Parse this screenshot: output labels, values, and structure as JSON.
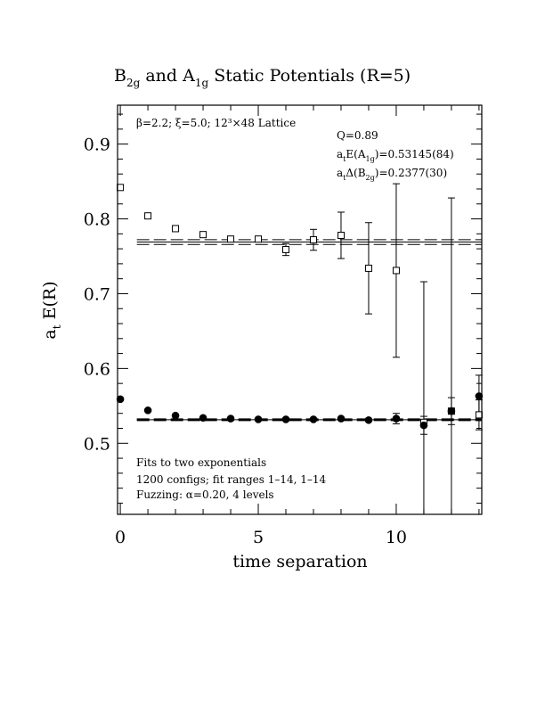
{
  "chart_data": {
    "type": "scatter",
    "title_parts": {
      "p1": "B",
      "p1_sub": "2g",
      "p2": " and A",
      "p2_sub": "1g",
      "p3": " Static Potentials (R=5)"
    },
    "xlabel": "time separation",
    "ylabel": {
      "main": "a",
      "sub": "t",
      "rest": " E(R)"
    },
    "xlim": [
      -0.1,
      13.1
    ],
    "ylim": [
      0.405,
      0.952
    ],
    "xticks": [
      0,
      5,
      10
    ],
    "xtick_labels": [
      "0",
      "5",
      "10"
    ],
    "yticks": [
      0.5,
      0.6,
      0.7,
      0.8,
      0.9
    ],
    "ytick_labels": [
      "0.5",
      "0.6",
      "0.7",
      "0.8",
      "0.9"
    ],
    "annotations": {
      "params": "β=2.2; ξ=5.0; 12³×48 Lattice",
      "q": "Q=0.89",
      "a1g": {
        "a": "a",
        "t": "t",
        "e": "E(A",
        "sub": "1g",
        "val": ")=0.53145(84)"
      },
      "b2g": {
        "a": "a",
        "t": "t",
        "d": "Δ(B",
        "sub": "2g",
        "val": ")=0.2377(30)"
      },
      "fits_line1": "Fits to two exponentials",
      "fits_line2": "1200 configs; fit ranges 1–14, 1–14",
      "fits_line3": "Fuzzing: α=0.20, 4 levels"
    },
    "series": [
      {
        "marker": "open-square",
        "points": [
          {
            "x": 0,
            "y": 0.842
          },
          {
            "x": 1,
            "y": 0.804
          },
          {
            "x": 2,
            "y": 0.787
          },
          {
            "x": 3,
            "y": 0.779
          },
          {
            "x": 4,
            "y": 0.773
          },
          {
            "x": 5,
            "y": 0.773
          },
          {
            "x": 6,
            "y": 0.759,
            "err": 0.008
          },
          {
            "x": 7,
            "y": 0.772,
            "err": 0.014
          },
          {
            "x": 8,
            "y": 0.778,
            "err": 0.031
          },
          {
            "x": 9,
            "y": 0.734,
            "err": 0.061
          },
          {
            "x": 10,
            "y": 0.731,
            "err": 0.116
          },
          {
            "x": 11,
            "y": 0.528,
            "err": 0.188
          },
          {
            "x": 12,
            "y": 0.543,
            "err": 0.285
          },
          {
            "x": 13,
            "y": 0.538,
            "err": 0.02
          }
        ],
        "fit": {
          "y": 0.769,
          "band": 0.0032,
          "x_from": 0.6,
          "x_to": 13.1
        }
      },
      {
        "marker": "filled-circle",
        "points": [
          {
            "x": 0,
            "y": 0.559
          },
          {
            "x": 1,
            "y": 0.544
          },
          {
            "x": 2,
            "y": 0.537
          },
          {
            "x": 3,
            "y": 0.534
          },
          {
            "x": 4,
            "y": 0.533
          },
          {
            "x": 5,
            "y": 0.532
          },
          {
            "x": 6,
            "y": 0.532
          },
          {
            "x": 7,
            "y": 0.532
          },
          {
            "x": 8,
            "y": 0.533
          },
          {
            "x": 9,
            "y": 0.531
          },
          {
            "x": 10,
            "y": 0.533,
            "err": 0.007
          },
          {
            "x": 11,
            "y": 0.524,
            "err": 0.012
          },
          {
            "x": 12,
            "y": 0.543,
            "err": 0.018
          },
          {
            "x": 13,
            "y": 0.563,
            "err": 0.028
          }
        ],
        "fit": {
          "y": 0.53145,
          "band": 0.00084,
          "x_from": 0.6,
          "x_to": 13.1
        }
      }
    ]
  }
}
